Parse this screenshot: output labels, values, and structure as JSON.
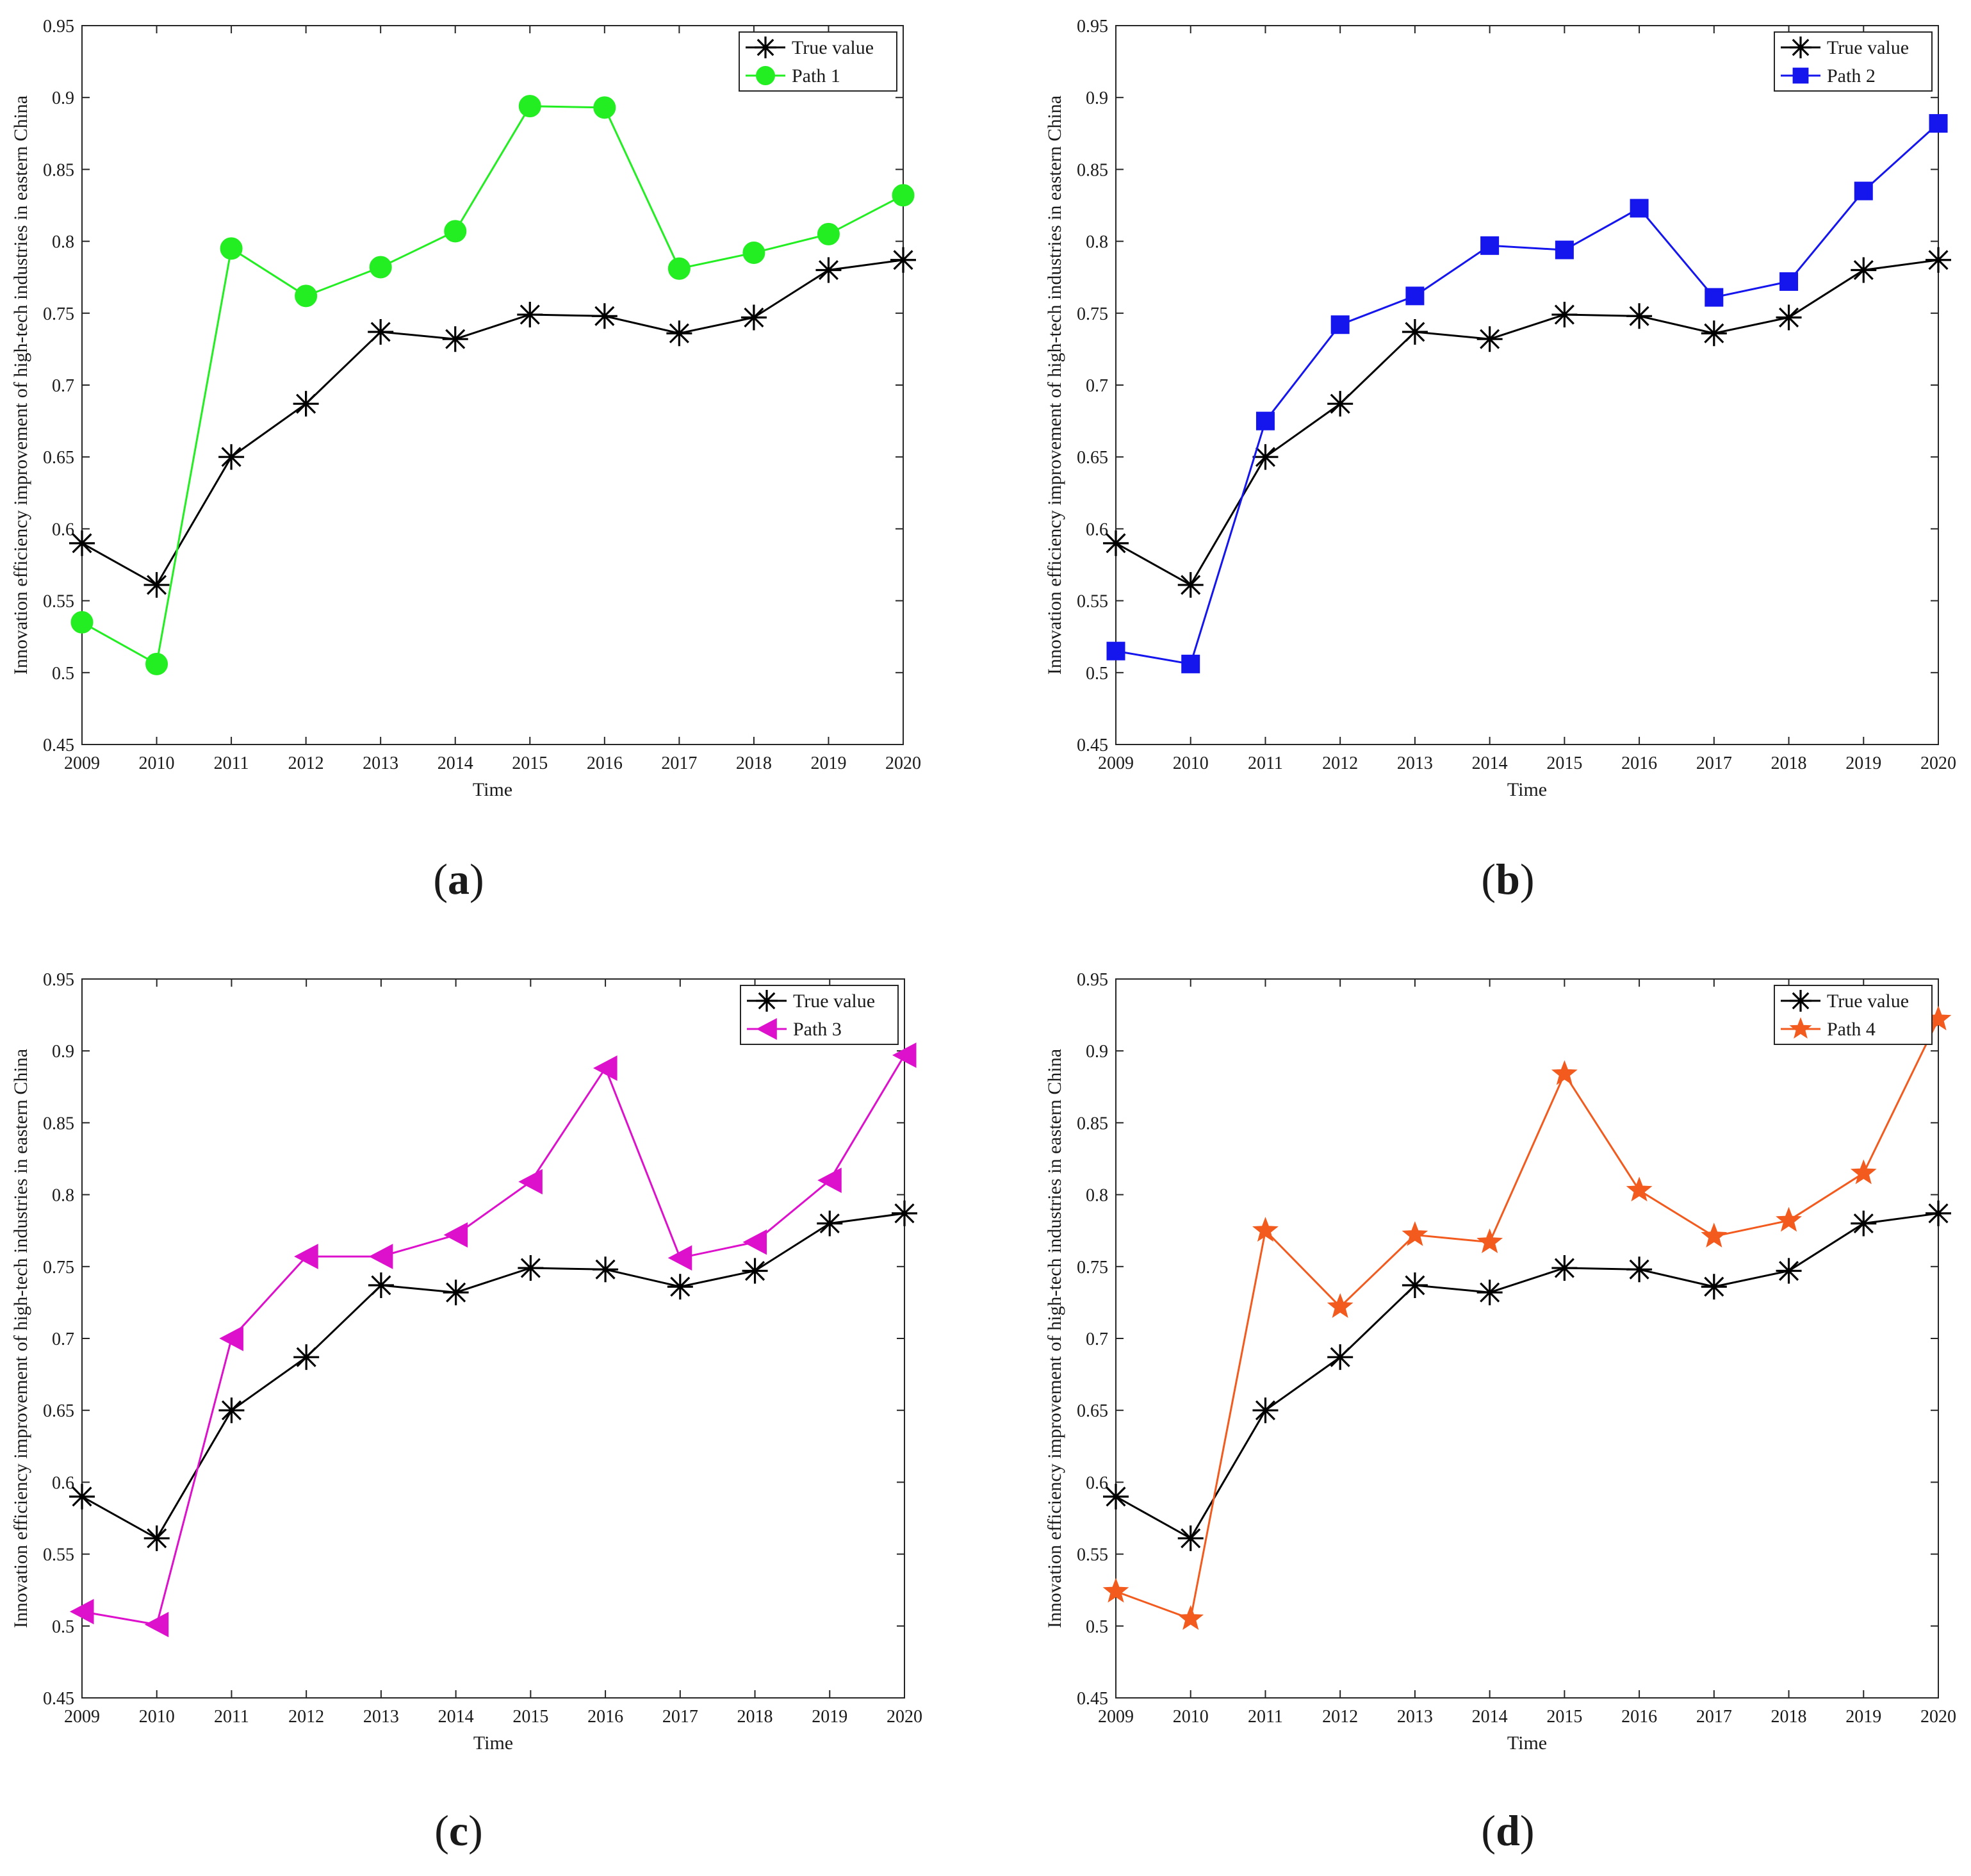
{
  "chart_data": [
    {
      "type": "line",
      "panel_label": "a",
      "xlabel": "Time",
      "ylabel": "Innovation efficiency improvement of high-tech industries in eastern China",
      "x": [
        2009,
        2010,
        2011,
        2012,
        2013,
        2014,
        2015,
        2016,
        2017,
        2018,
        2019,
        2020
      ],
      "xticks": [
        "2009",
        "2010",
        "2011",
        "2012",
        "2013",
        "2014",
        "2015",
        "2016",
        "2017",
        "2018",
        "2019",
        "2020"
      ],
      "ylim": [
        0.45,
        0.95
      ],
      "yticks": [
        "0.45",
        "0.5",
        "0.55",
        "0.6",
        "0.65",
        "0.7",
        "0.75",
        "0.8",
        "0.85",
        "0.9",
        "0.95"
      ],
      "grid": false,
      "legend_position": "top-right",
      "series": [
        {
          "name": "True value",
          "color": "#000000",
          "marker": "asterisk",
          "values": [
            0.59,
            0.561,
            0.65,
            0.687,
            0.737,
            0.732,
            0.749,
            0.748,
            0.736,
            0.747,
            0.78,
            0.787
          ]
        },
        {
          "name": "Path 1",
          "color": "#22EE22",
          "marker": "circle",
          "values": [
            0.535,
            0.506,
            0.795,
            0.762,
            0.782,
            0.807,
            0.894,
            0.893,
            0.781,
            0.792,
            0.805,
            0.832
          ]
        }
      ]
    },
    {
      "type": "line",
      "panel_label": "b",
      "xlabel": "Time",
      "ylabel": "Innovation efficiency improvement of high-tech industries in eastern China",
      "x": [
        2009,
        2010,
        2011,
        2012,
        2013,
        2014,
        2015,
        2016,
        2017,
        2018,
        2019,
        2020
      ],
      "xticks": [
        "2009",
        "2010",
        "2011",
        "2012",
        "2013",
        "2014",
        "2015",
        "2016",
        "2017",
        "2018",
        "2019",
        "2020"
      ],
      "ylim": [
        0.45,
        0.95
      ],
      "yticks": [
        "0.45",
        "0.5",
        "0.55",
        "0.6",
        "0.65",
        "0.7",
        "0.75",
        "0.8",
        "0.85",
        "0.9",
        "0.95"
      ],
      "grid": false,
      "legend_position": "top-right",
      "series": [
        {
          "name": "True value",
          "color": "#000000",
          "marker": "asterisk",
          "values": [
            0.59,
            0.561,
            0.65,
            0.687,
            0.737,
            0.732,
            0.749,
            0.748,
            0.736,
            0.747,
            0.78,
            0.787
          ]
        },
        {
          "name": "Path 2",
          "color": "#1515EE",
          "marker": "square",
          "values": [
            0.515,
            0.506,
            0.675,
            0.742,
            0.762,
            0.797,
            0.794,
            0.823,
            0.761,
            0.772,
            0.835,
            0.882
          ]
        }
      ]
    },
    {
      "type": "line",
      "panel_label": "c",
      "xlabel": "Time",
      "ylabel": "Innovation efficiency improvement of high-tech industries in eastern China",
      "x": [
        2009,
        2010,
        2011,
        2012,
        2013,
        2014,
        2015,
        2016,
        2017,
        2018,
        2019,
        2020
      ],
      "xticks": [
        "2009",
        "2010",
        "2011",
        "2012",
        "2013",
        "2014",
        "2015",
        "2016",
        "2017",
        "2018",
        "2019",
        "2020"
      ],
      "ylim": [
        0.45,
        0.95
      ],
      "yticks": [
        "0.45",
        "0.5",
        "0.55",
        "0.6",
        "0.65",
        "0.7",
        "0.75",
        "0.8",
        "0.85",
        "0.9",
        "0.95"
      ],
      "grid": false,
      "legend_position": "top-right",
      "series": [
        {
          "name": "True value",
          "color": "#000000",
          "marker": "asterisk",
          "values": [
            0.59,
            0.561,
            0.65,
            0.687,
            0.737,
            0.732,
            0.749,
            0.748,
            0.736,
            0.747,
            0.78,
            0.787
          ]
        },
        {
          "name": "Path 3",
          "color": "#DD11CC",
          "marker": "triangle-left",
          "values": [
            0.51,
            0.501,
            0.7,
            0.757,
            0.757,
            0.772,
            0.809,
            0.888,
            0.756,
            0.767,
            0.81,
            0.897
          ]
        }
      ]
    },
    {
      "type": "line",
      "panel_label": "d",
      "xlabel": "Time",
      "ylabel": "Innovation efficiency improvement of high-tech industries in eastern China",
      "x": [
        2009,
        2010,
        2011,
        2012,
        2013,
        2014,
        2015,
        2016,
        2017,
        2018,
        2019,
        2020
      ],
      "xticks": [
        "2009",
        "2010",
        "2011",
        "2012",
        "2013",
        "2014",
        "2015",
        "2016",
        "2017",
        "2018",
        "2019",
        "2020"
      ],
      "ylim": [
        0.45,
        0.95
      ],
      "yticks": [
        "0.45",
        "0.5",
        "0.55",
        "0.6",
        "0.65",
        "0.7",
        "0.75",
        "0.8",
        "0.85",
        "0.9",
        "0.95"
      ],
      "grid": false,
      "legend_position": "top-right",
      "series": [
        {
          "name": "True value",
          "color": "#000000",
          "marker": "asterisk",
          "values": [
            0.59,
            0.561,
            0.65,
            0.687,
            0.737,
            0.732,
            0.749,
            0.748,
            0.736,
            0.747,
            0.78,
            0.787
          ]
        },
        {
          "name": "Path 4",
          "color": "#F25A1E",
          "marker": "star",
          "values": [
            0.524,
            0.505,
            0.775,
            0.722,
            0.772,
            0.767,
            0.884,
            0.803,
            0.771,
            0.782,
            0.815,
            0.922
          ]
        }
      ]
    }
  ]
}
